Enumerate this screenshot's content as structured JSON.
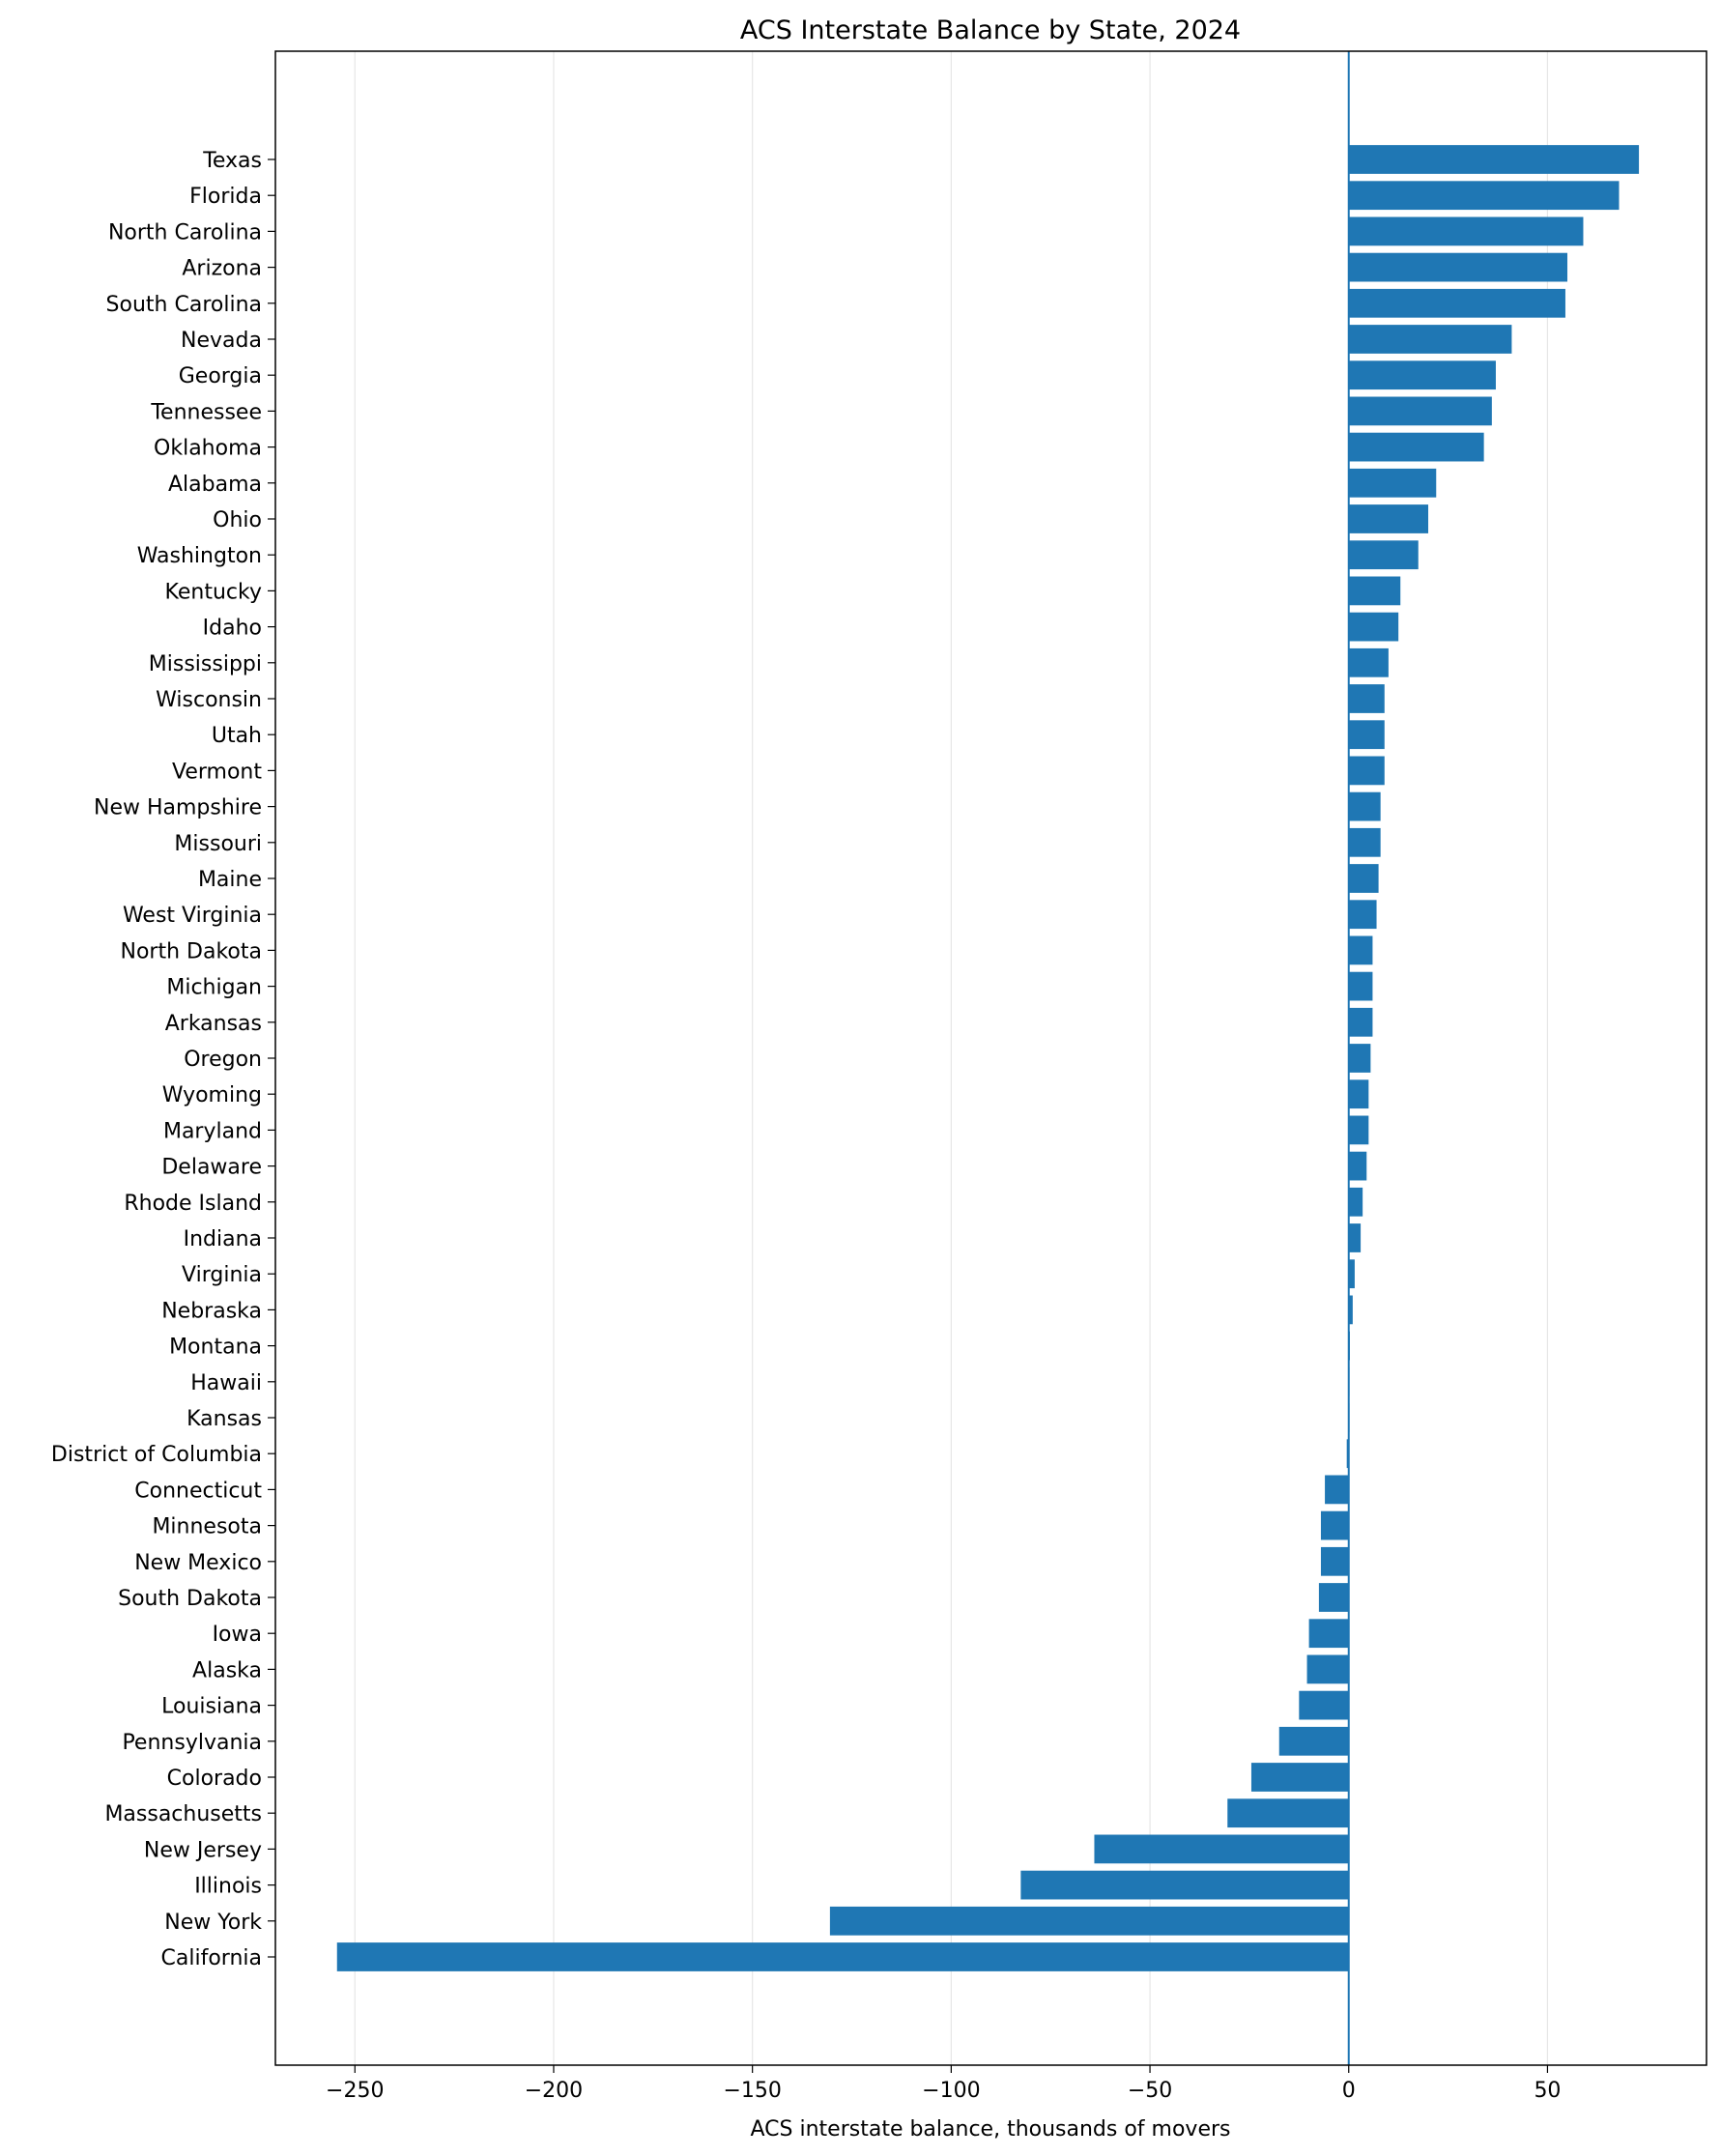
{
  "chart_data": {
    "type": "bar",
    "orientation": "horizontal",
    "title": "ACS Interstate Balance by State, 2024",
    "xlabel": "ACS interstate balance, thousands of movers",
    "ylabel": "",
    "xlim": [
      -270,
      90
    ],
    "xticks": [
      -250,
      -200,
      -150,
      -100,
      -50,
      0,
      50
    ],
    "xtick_labels": [
      "−250",
      "−200",
      "−150",
      "−100",
      "−50",
      "0",
      "50"
    ],
    "grid": "vertical",
    "zero_line": true,
    "bar_color": "#1f77b4",
    "categories": [
      "Texas",
      "Florida",
      "North Carolina",
      "Arizona",
      "South Carolina",
      "Nevada",
      "Georgia",
      "Tennessee",
      "Oklahoma",
      "Alabama",
      "Ohio",
      "Washington",
      "Kentucky",
      "Idaho",
      "Mississippi",
      "Wisconsin",
      "Utah",
      "Vermont",
      "New Hampshire",
      "Missouri",
      "Maine",
      "West Virginia",
      "North Dakota",
      "Michigan",
      "Arkansas",
      "Oregon",
      "Wyoming",
      "Maryland",
      "Delaware",
      "Rhode Island",
      "Indiana",
      "Virginia",
      "Nebraska",
      "Montana",
      "Hawaii",
      "Kansas",
      "District of Columbia",
      "Connecticut",
      "Minnesota",
      "New Mexico",
      "South Dakota",
      "Iowa",
      "Alaska",
      "Louisiana",
      "Pennsylvania",
      "Colorado",
      "Massachusetts",
      "New Jersey",
      "Illinois",
      "New York",
      "California"
    ],
    "values": [
      73,
      68,
      59,
      55,
      54.5,
      41,
      37,
      36,
      34,
      22,
      20,
      17.5,
      13,
      12.5,
      10,
      9,
      9,
      9,
      8,
      8,
      7.5,
      7,
      6,
      6,
      6,
      5.5,
      5,
      5,
      4.5,
      3.5,
      3,
      1.5,
      1,
      0.3,
      0.2,
      0.2,
      -0.5,
      -6,
      -7,
      -7,
      -7.5,
      -10,
      -10.5,
      -12.5,
      -17.5,
      -24.5,
      -30.5,
      -64,
      -82.5,
      -130.5,
      -254.5
    ]
  }
}
